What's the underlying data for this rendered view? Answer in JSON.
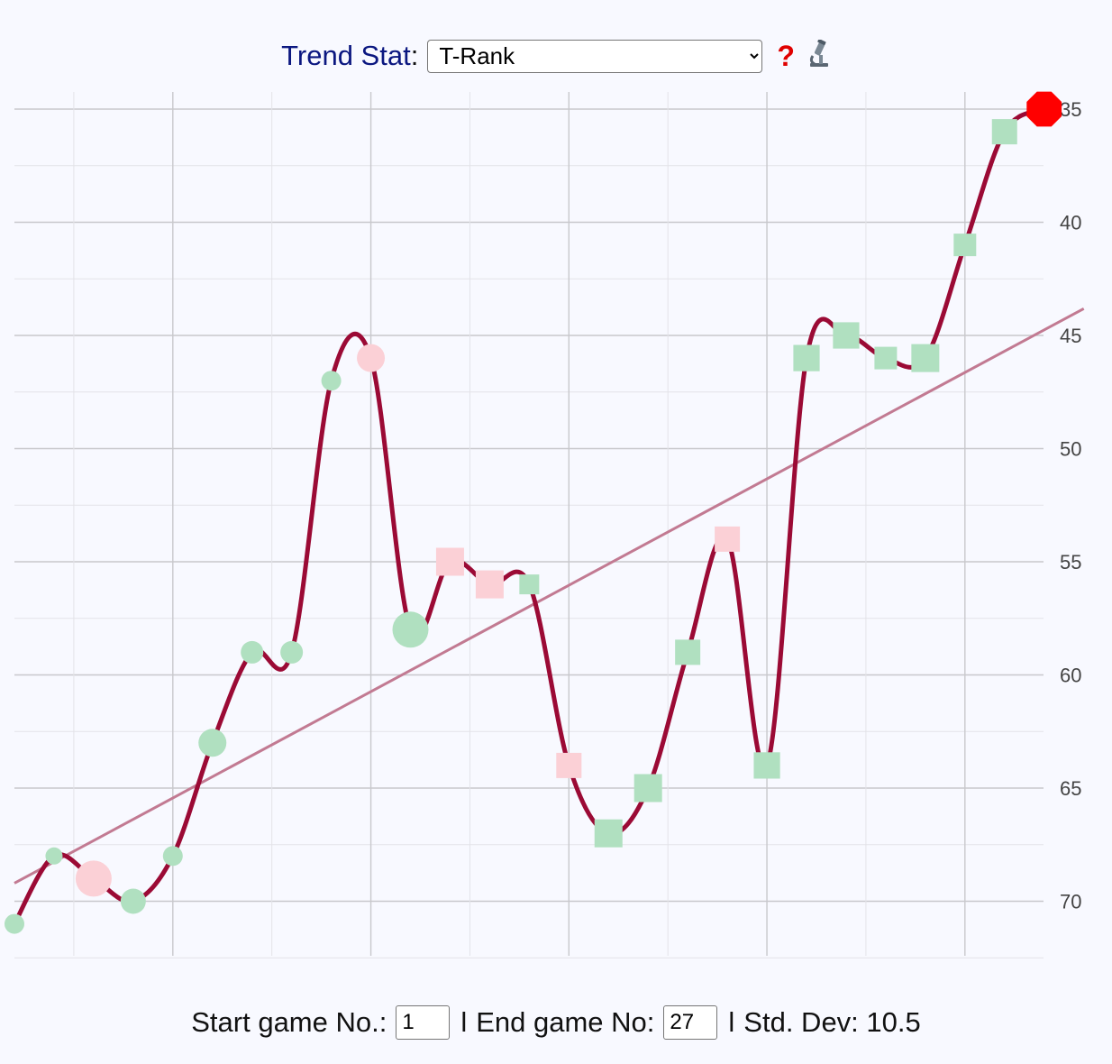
{
  "header": {
    "trend_label": "Trend Stat",
    "colon": ":",
    "selected_stat": "T-Rank",
    "help_glyph": "?",
    "icons": {
      "help": "question-mark-icon",
      "details": "microscope-icon"
    }
  },
  "footer": {
    "start_label": "Start game No.:",
    "start_value": "1",
    "separator": "l",
    "end_label": "End game No:",
    "end_value": "27",
    "stddev_label": "Std. Dev: 10.5"
  },
  "chart_data": {
    "type": "line",
    "title": "",
    "xlabel": "",
    "ylabel": "",
    "x": [
      1,
      2,
      3,
      4,
      5,
      6,
      7,
      8,
      9,
      10,
      11,
      12,
      13,
      14,
      15,
      16,
      17,
      18,
      19,
      20,
      21,
      22,
      23,
      24,
      25,
      26,
      27
    ],
    "y_reversed": true,
    "ylim": [
      72.5,
      34.5
    ],
    "y_ticks": [
      35,
      40,
      45,
      50,
      55,
      60,
      65,
      70
    ],
    "grid": true,
    "series": [
      {
        "values": [
          71,
          68,
          69,
          70,
          68,
          63,
          59,
          59,
          47,
          46,
          58,
          55,
          56,
          56,
          64,
          67,
          65,
          59,
          54,
          64,
          46,
          45,
          46,
          46,
          41,
          36,
          35
        ],
        "color": "#9b0a35"
      }
    ],
    "markers": {
      "shapes": [
        "circle",
        "circle",
        "circle",
        "circle",
        "circle",
        "circle",
        "circle",
        "circle",
        "circle",
        "circle",
        "circle",
        "square",
        "square",
        "square",
        "square",
        "square",
        "square",
        "square",
        "square",
        "square",
        "square",
        "square",
        "square",
        "square",
        "square",
        "square",
        "octagon"
      ],
      "colors": [
        "#b0e0c0",
        "#b0e0c0",
        "#fbd0d6",
        "#b0e0c0",
        "#b0e0c0",
        "#b0e0c0",
        "#b0e0c0",
        "#b0e0c0",
        "#b0e0c0",
        "#fbd0d6",
        "#b0e0c0",
        "#fbd0d6",
        "#fbd0d6",
        "#b0e0c0",
        "#fbd0d6",
        "#b0e0c0",
        "#b0e0c0",
        "#b0e0c0",
        "#fbd0d6",
        "#b0e0c0",
        "#b0e0c0",
        "#b0e0c0",
        "#b0e0c0",
        "#b0e0c0",
        "#b0e0c0",
        "#b0e0c0",
        "#ff0000"
      ],
      "magnitude": [
        1,
        0.5,
        4,
        2,
        1,
        2.5,
        1.5,
        1.5,
        1,
        2.5,
        4,
        2.5,
        2.5,
        1,
        2,
        2.5,
        2.5,
        2,
        2,
        2.2,
        2.2,
        2.2,
        1.5,
        2.5,
        1.5,
        2,
        3
      ]
    },
    "trendline": {
      "start": [
        1,
        69.2
      ],
      "end": [
        27,
        42.8
      ],
      "color": "#c27a92"
    }
  }
}
